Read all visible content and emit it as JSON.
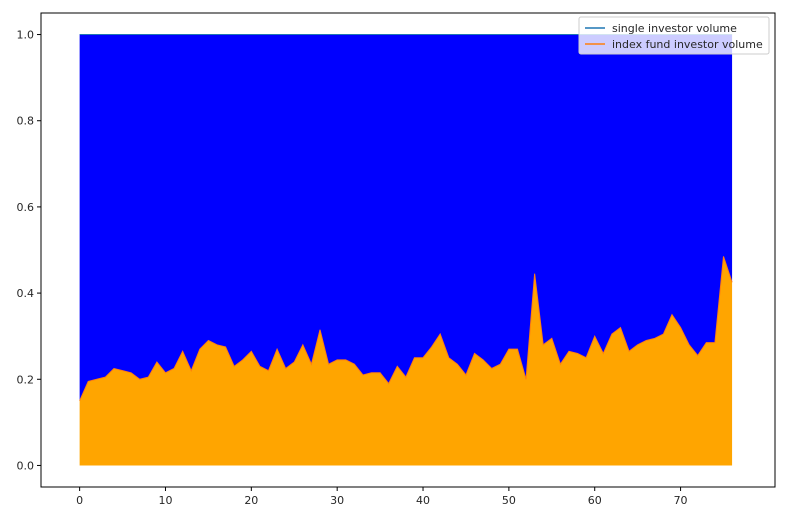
{
  "chart_data": {
    "type": "area",
    "stacked": true,
    "title": "",
    "xlabel": "",
    "ylabel": "",
    "xlim": [
      -4.5,
      81
    ],
    "ylim": [
      -0.05,
      1.05
    ],
    "x_ticks": [
      0,
      10,
      20,
      30,
      40,
      50,
      60,
      70
    ],
    "y_ticks": [
      0.0,
      0.2,
      0.4,
      0.6,
      0.8,
      1.0
    ],
    "x_tick_labels": [
      "0",
      "10",
      "20",
      "30",
      "40",
      "50",
      "60",
      "70"
    ],
    "y_tick_labels": [
      "0.0",
      "0.2",
      "0.4",
      "0.6",
      "0.8",
      "1.0"
    ],
    "grid": false,
    "legend": "top-right",
    "x": [
      0,
      1,
      2,
      3,
      4,
      5,
      6,
      7,
      8,
      9,
      10,
      11,
      12,
      13,
      14,
      15,
      16,
      17,
      18,
      19,
      20,
      21,
      22,
      23,
      24,
      25,
      26,
      27,
      28,
      29,
      30,
      31,
      32,
      33,
      34,
      35,
      36,
      37,
      38,
      39,
      40,
      41,
      42,
      43,
      44,
      45,
      46,
      47,
      48,
      49,
      50,
      51,
      52,
      53,
      54,
      55,
      56,
      57,
      58,
      59,
      60,
      61,
      62,
      63,
      64,
      65,
      66,
      67,
      68,
      69,
      70,
      71,
      72,
      73,
      74,
      75,
      76
    ],
    "series": [
      {
        "name": "single investor volume",
        "line_color": "#1f77b4",
        "fill_color": "#0000ff",
        "values": [
          0.85,
          0.805,
          0.8,
          0.795,
          0.775,
          0.78,
          0.785,
          0.8,
          0.795,
          0.76,
          0.785,
          0.775,
          0.735,
          0.78,
          0.73,
          0.71,
          0.72,
          0.725,
          0.77,
          0.755,
          0.735,
          0.77,
          0.78,
          0.73,
          0.775,
          0.76,
          0.72,
          0.765,
          0.685,
          0.765,
          0.755,
          0.755,
          0.765,
          0.79,
          0.785,
          0.785,
          0.81,
          0.77,
          0.795,
          0.75,
          0.75,
          0.725,
          0.695,
          0.75,
          0.765,
          0.79,
          0.74,
          0.755,
          0.775,
          0.765,
          0.73,
          0.73,
          0.8,
          0.555,
          0.72,
          0.705,
          0.765,
          0.735,
          0.74,
          0.75,
          0.7,
          0.74,
          0.695,
          0.68,
          0.735,
          0.72,
          0.71,
          0.705,
          0.695,
          0.65,
          0.68,
          0.72,
          0.745,
          0.715,
          0.715,
          0.515,
          0.575
        ]
      },
      {
        "name": "index fund investor volume",
        "line_color": "#ff7f0e",
        "fill_color": "#ffa500",
        "values": [
          0.15,
          0.195,
          0.2,
          0.205,
          0.225,
          0.22,
          0.215,
          0.2,
          0.205,
          0.24,
          0.215,
          0.225,
          0.265,
          0.22,
          0.27,
          0.29,
          0.28,
          0.275,
          0.23,
          0.245,
          0.265,
          0.23,
          0.22,
          0.27,
          0.225,
          0.24,
          0.28,
          0.235,
          0.315,
          0.235,
          0.245,
          0.245,
          0.235,
          0.21,
          0.215,
          0.215,
          0.19,
          0.23,
          0.205,
          0.25,
          0.25,
          0.275,
          0.305,
          0.25,
          0.235,
          0.21,
          0.26,
          0.245,
          0.225,
          0.235,
          0.27,
          0.27,
          0.2,
          0.445,
          0.28,
          0.295,
          0.235,
          0.265,
          0.26,
          0.25,
          0.3,
          0.26,
          0.305,
          0.32,
          0.265,
          0.28,
          0.29,
          0.295,
          0.305,
          0.35,
          0.32,
          0.28,
          0.255,
          0.285,
          0.285,
          0.485,
          0.425
        ]
      }
    ]
  }
}
